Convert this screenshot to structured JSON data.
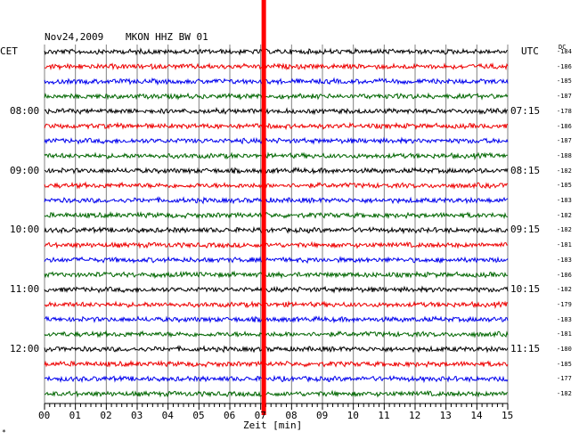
{
  "header": {
    "date": "Nov24,2009",
    "station": "MKON HHZ BW 01",
    "left_tz": "CET",
    "right_tz": "UTC",
    "dc_label": "DC",
    "corner_mark": "*"
  },
  "chart_data": {
    "type": "line",
    "description_none": "",
    "xlabel": "Zeit [min]",
    "xlim": [
      0,
      15
    ],
    "x_ticks": [
      "00",
      "01",
      "02",
      "03",
      "04",
      "05",
      "06",
      "07",
      "08",
      "09",
      "10",
      "11",
      "12",
      "13",
      "14",
      "15"
    ],
    "trace_colors": [
      "#000000",
      "#ee0000",
      "#0000ee",
      "#006600"
    ],
    "left_time_labels": [
      {
        "trace": 4,
        "text": "08:00"
      },
      {
        "trace": 8,
        "text": "09:00"
      },
      {
        "trace": 12,
        "text": "10:00"
      },
      {
        "trace": 16,
        "text": "11:00"
      },
      {
        "trace": 20,
        "text": "12:00"
      }
    ],
    "right_time_labels": [
      {
        "trace": 4,
        "text": "07:15"
      },
      {
        "trace": 8,
        "text": "08:15"
      },
      {
        "trace": 12,
        "text": "09:15"
      },
      {
        "trace": 16,
        "text": "10:15"
      },
      {
        "trace": 20,
        "text": "11:15"
      }
    ],
    "dc_offsets": [
      "-184",
      "-186",
      "-185",
      "-187",
      "-178",
      "-186",
      "-187",
      "-188",
      "-182",
      "-185",
      "-183",
      "-182",
      "-182",
      "-181",
      "-183",
      "-186",
      "-182",
      "-179",
      "-183",
      "-181",
      "-180",
      "-185",
      "-177",
      "-182"
    ],
    "event_marker": {
      "minute": 7.1,
      "color": "#ff0000"
    }
  }
}
